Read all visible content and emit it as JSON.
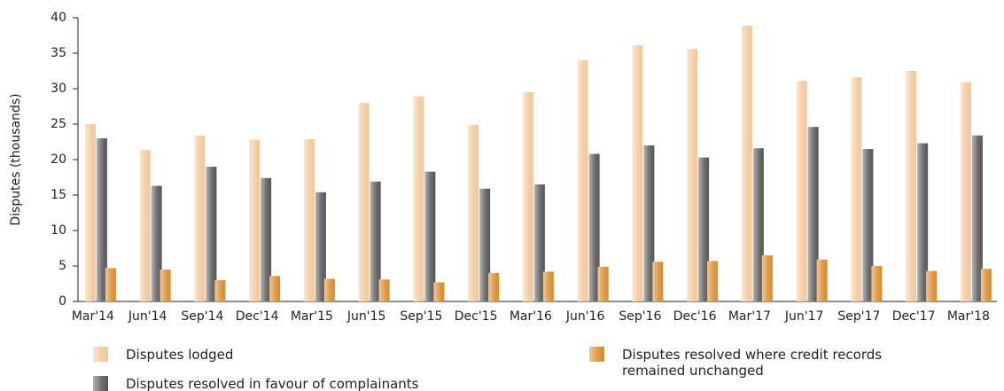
{
  "chart_data": {
    "type": "bar",
    "y_label": "Disputes (thousands)",
    "categories": [
      "Mar'14",
      "Jun'14",
      "Sep'14",
      "Dec'14",
      "Mar'15",
      "Jun'15",
      "Sep'15",
      "Dec'15",
      "Mar'16",
      "Jun'16",
      "Sep'16",
      "Dec'16",
      "Mar'17",
      "Jun'17",
      "Sep'17",
      "Dec'17",
      "Mar'18"
    ],
    "series": [
      {
        "name": "Disputes lodged",
        "color": "#f2c79a",
        "values": [
          25,
          21.4,
          23.4,
          22.8,
          22.9,
          28,
          28.9,
          24.9,
          29.5,
          34,
          36.1,
          35.6,
          38.9,
          31.1,
          31.6,
          32.5,
          30.9
        ]
      },
      {
        "name": "Disputes resolved in favour of complainants",
        "color": "#555555",
        "values": [
          23,
          16.3,
          19,
          17.4,
          15.4,
          16.9,
          18.3,
          15.9,
          16.5,
          20.8,
          22,
          20.3,
          21.6,
          24.6,
          21.5,
          22.3,
          23.4
        ]
      },
      {
        "name": "Disputes resolved where credit records remained unchanged",
        "color": "#d98a2b",
        "values": [
          4.7,
          4.5,
          3,
          3.6,
          3.2,
          3.1,
          2.7,
          4,
          4.2,
          4.9,
          5.6,
          5.7,
          6.5,
          5.9,
          5,
          4.3,
          4.6
        ]
      }
    ],
    "ylim": [
      0,
      40
    ],
    "yticks": [
      0,
      5,
      10,
      15,
      20,
      25,
      30,
      35,
      40
    ]
  }
}
